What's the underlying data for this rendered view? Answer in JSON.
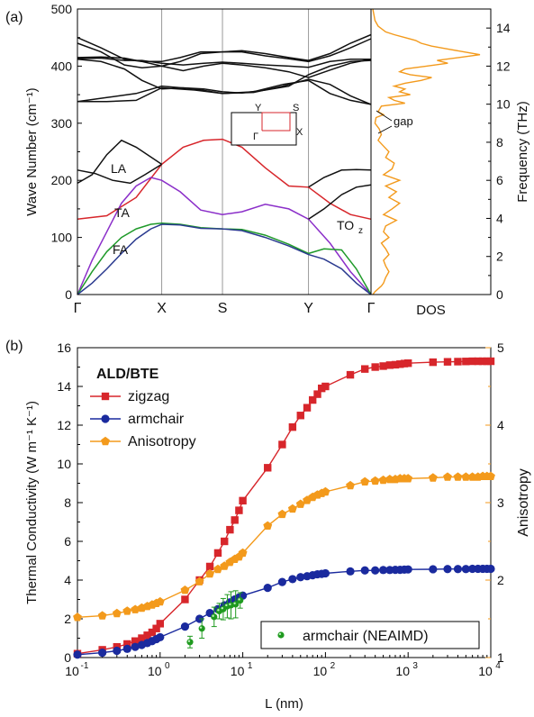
{
  "colors": {
    "red": "#d7262b",
    "blue": "#1a2a9e",
    "orange": "#f39a1c",
    "purple": "#8b2fc9",
    "green": "#1f9a2a",
    "navy": "#2a3a8f",
    "green_dot": "#1f9a1f",
    "grey": "#9a9a9a",
    "black": "#111111"
  },
  "chart_data": [
    {
      "panel_label": "(a)",
      "type": "line",
      "ylabel_left": "Wave Number (cm⁻¹)",
      "ylabel_right": "Frequency (THz)",
      "ylim": [
        0,
        500
      ],
      "yticks": [
        0,
        100,
        200,
        300,
        400,
        500
      ],
      "ylim_right": [
        0,
        15
      ],
      "yticks_right": [
        0,
        2,
        4,
        6,
        8,
        10,
        12,
        14
      ],
      "path_points": [
        "Γ",
        "X",
        "S",
        "Y",
        "Γ"
      ],
      "path_pos": [
        0,
        0.287,
        0.494,
        0.787,
        1
      ],
      "dos_label": "DOS",
      "labels": {
        "LA": "LA",
        "TA": "TA",
        "FA": "FA",
        "TO": "TO",
        "TO_sub": "z",
        "gap": "gap"
      },
      "inset": {
        "Y": "Y",
        "S": "S",
        "X": "X",
        "Gamma": "Γ"
      },
      "branches": [
        {
          "role": "LA",
          "color": "red",
          "x": [
            0,
            0.1,
            0.2,
            0.287,
            0.36,
            0.43,
            0.494,
            0.56,
            0.64,
            0.72,
            0.787,
            0.86,
            0.93,
            1
          ],
          "y": [
            132,
            138,
            170,
            228,
            258,
            270,
            272,
            258,
            222,
            190,
            188,
            160,
            140,
            132
          ]
        },
        {
          "role": "TA",
          "color": "purple",
          "x": [
            0,
            0.05,
            0.1,
            0.15,
            0.2,
            0.25,
            0.287,
            0.35,
            0.42,
            0.494,
            0.56,
            0.64,
            0.72,
            0.787,
            0.86,
            0.93,
            1
          ],
          "y": [
            0,
            60,
            110,
            160,
            190,
            205,
            200,
            180,
            148,
            140,
            145,
            158,
            150,
            132,
            90,
            40,
            0
          ]
        },
        {
          "role": "FA",
          "color": "green",
          "x": [
            0,
            0.05,
            0.1,
            0.15,
            0.2,
            0.25,
            0.287,
            0.35,
            0.42,
            0.494,
            0.56,
            0.64,
            0.72,
            0.787,
            0.84,
            0.9,
            0.95,
            1
          ],
          "y": [
            0,
            40,
            75,
            100,
            115,
            123,
            125,
            123,
            117,
            115,
            114,
            104,
            88,
            72,
            80,
            78,
            45,
            0
          ]
        },
        {
          "role": "ZA",
          "color": "navy",
          "x": [
            0,
            0.05,
            0.1,
            0.15,
            0.2,
            0.25,
            0.287,
            0.35,
            0.42,
            0.494,
            0.56,
            0.64,
            0.72,
            0.787,
            0.84,
            0.9,
            0.95,
            1
          ],
          "y": [
            0,
            20,
            45,
            72,
            97,
            115,
            123,
            122,
            116,
            115,
            112,
            100,
            85,
            70,
            62,
            45,
            20,
            0
          ]
        },
        {
          "role": "o1",
          "color": "black",
          "x": [
            0,
            0.06,
            0.12,
            0.18,
            0.23,
            0.287
          ],
          "y": [
            218,
            212,
            200,
            195,
            210,
            228
          ]
        },
        {
          "role": "o2",
          "color": "black",
          "x": [
            0,
            0.05,
            0.1,
            0.15,
            0.2,
            0.287
          ],
          "y": [
            195,
            210,
            245,
            270,
            258,
            228
          ]
        },
        {
          "role": "o3",
          "color": "black",
          "x": [
            0.787,
            0.84,
            0.9,
            0.95,
            1
          ],
          "y": [
            188,
            205,
            218,
            219,
            218
          ]
        },
        {
          "role": "o4",
          "color": "black",
          "x": [
            0.787,
            0.84,
            0.9,
            0.95,
            1
          ],
          "y": [
            132,
            150,
            175,
            188,
            192
          ]
        },
        {
          "role": "o5",
          "color": "black",
          "x": [
            0,
            0.1,
            0.2,
            0.287,
            0.4,
            0.494,
            0.6,
            0.7,
            0.787,
            0.86,
            0.93,
            1
          ],
          "y": [
            338,
            338,
            340,
            362,
            358,
            352,
            355,
            368,
            375,
            352,
            340,
            333
          ]
        },
        {
          "role": "o6",
          "color": "black",
          "x": [
            0,
            0.1,
            0.2,
            0.287,
            0.4,
            0.494,
            0.6,
            0.7,
            0.787,
            0.86,
            0.93,
            1
          ],
          "y": [
            338,
            345,
            352,
            365,
            360,
            352,
            354,
            365,
            377,
            368,
            348,
            333
          ]
        },
        {
          "role": "o7",
          "color": "black",
          "x": [
            0,
            0.08,
            0.16,
            0.22,
            0.287,
            0.35,
            0.42,
            0.494,
            0.56,
            0.64,
            0.72,
            0.787,
            0.86,
            0.93,
            1
          ],
          "y": [
            450,
            432,
            412,
            408,
            408,
            415,
            425,
            425,
            425,
            418,
            413,
            408,
            418,
            432,
            448
          ]
        },
        {
          "role": "o8",
          "color": "black",
          "x": [
            0,
            0.08,
            0.16,
            0.22,
            0.287,
            0.35,
            0.42,
            0.494,
            0.56,
            0.64,
            0.72,
            0.787,
            0.86,
            0.93,
            1
          ],
          "y": [
            440,
            425,
            402,
            397,
            400,
            408,
            422,
            425,
            427,
            422,
            415,
            410,
            422,
            440,
            455
          ]
        },
        {
          "role": "o9",
          "color": "black",
          "x": [
            0,
            0.08,
            0.16,
            0.22,
            0.287,
            0.36,
            0.43,
            0.494,
            0.56,
            0.64,
            0.72,
            0.787,
            0.86,
            0.93,
            1
          ],
          "y": [
            415,
            416,
            414,
            408,
            400,
            392,
            400,
            405,
            402,
            397,
            390,
            380,
            393,
            405,
            412
          ]
        },
        {
          "role": "o10",
          "color": "black",
          "x": [
            0,
            0.08,
            0.16,
            0.22,
            0.287,
            0.36,
            0.43,
            0.494,
            0.56,
            0.64,
            0.72,
            0.787,
            0.86,
            0.93,
            1
          ],
          "y": [
            413,
            414,
            410,
            410,
            405,
            402,
            405,
            407,
            405,
            402,
            400,
            398,
            408,
            412,
            412
          ]
        },
        {
          "role": "o11",
          "color": "black",
          "x": [
            0,
            0.08,
            0.16,
            0.22,
            0.287,
            0.36,
            0.43,
            0.494,
            0.56,
            0.64,
            0.72,
            0.787,
            0.86,
            0.93,
            1
          ],
          "y": [
            412,
            408,
            395,
            375,
            360,
            362,
            360,
            355,
            353,
            358,
            365,
            385,
            400,
            408,
            410
          ]
        }
      ],
      "dos": {
        "color": "orange",
        "y": [
          0,
          5,
          10,
          15,
          20,
          30,
          40,
          50,
          60,
          70,
          80,
          90,
          100,
          110,
          120,
          130,
          140,
          150,
          160,
          170,
          180,
          190,
          200,
          210,
          220,
          230,
          240,
          250,
          260,
          270,
          280,
          290,
          300,
          310,
          315,
          320,
          330,
          335,
          340,
          345,
          350,
          355,
          360,
          365,
          370,
          375,
          380,
          385,
          390,
          395,
          400,
          405,
          410,
          415,
          420,
          425,
          430,
          435,
          440,
          445,
          450,
          455,
          460,
          470,
          480,
          490,
          500
        ],
        "v": [
          0,
          0.02,
          0.05,
          0.08,
          0.1,
          0.12,
          0.15,
          0.12,
          0.1,
          0.15,
          0.12,
          0.08,
          0.15,
          0.1,
          0.12,
          0.22,
          0.1,
          0.18,
          0.25,
          0.15,
          0.22,
          0.12,
          0.25,
          0.1,
          0.18,
          0.2,
          0.12,
          0.15,
          0.1,
          0.05,
          0.08,
          0.06,
          0.02,
          0.03,
          0.1,
          0.05,
          0.08,
          0.3,
          0.2,
          0.15,
          0.35,
          0.25,
          0.3,
          0.2,
          0.3,
          0.45,
          0.55,
          0.35,
          0.25,
          0.3,
          0.5,
          0.7,
          0.6,
          0.8,
          1.0,
          0.85,
          0.7,
          0.55,
          0.45,
          0.4,
          0.3,
          0.2,
          0.12,
          0.05,
          0.02,
          0.01,
          0
        ]
      }
    },
    {
      "panel_label": "(b)",
      "type": "line",
      "xlabel": "L (nm)",
      "ylabel_left": "Thermal Conductivity (W m⁻¹ K⁻¹)",
      "ylabel_right": "Anisotropy",
      "xscale": "log",
      "xlim": [
        0.1,
        10000
      ],
      "xticks": [
        {
          "v": 0.1,
          "b": "10",
          "e": "-1"
        },
        {
          "v": 1,
          "b": "10",
          "e": "0"
        },
        {
          "v": 10,
          "b": "10",
          "e": "1"
        },
        {
          "v": 100,
          "b": "10",
          "e": "2"
        },
        {
          "v": 1000,
          "b": "10",
          "e": "3"
        },
        {
          "v": 10000,
          "b": "10",
          "e": "4"
        }
      ],
      "ylim": [
        0,
        16
      ],
      "yticks": [
        0,
        2,
        4,
        6,
        8,
        10,
        12,
        14,
        16
      ],
      "ylim_right": [
        1,
        5
      ],
      "yticks_right": [
        1,
        2,
        3,
        4,
        5
      ],
      "legend_title": "ALD/BTE",
      "inset_legend": "armchair (NEAIMD)",
      "series": [
        {
          "name": "zigzag",
          "color": "red",
          "marker": "square",
          "axis": "left",
          "x": [
            0.1,
            0.2,
            0.3,
            0.4,
            0.5,
            0.6,
            0.7,
            0.8,
            0.9,
            1,
            2,
            3,
            4,
            5,
            6,
            7,
            8,
            9,
            10,
            20,
            30,
            40,
            50,
            60,
            70,
            80,
            90,
            100,
            200,
            300,
            400,
            500,
            600,
            700,
            800,
            900,
            1000,
            2000,
            3000,
            4000,
            5000,
            6000,
            7000,
            8000,
            9000,
            10000
          ],
          "y": [
            0.2,
            0.4,
            0.55,
            0.7,
            0.85,
            1.0,
            1.15,
            1.3,
            1.5,
            1.75,
            3.0,
            4.0,
            4.7,
            5.4,
            6.0,
            6.6,
            7.1,
            7.6,
            8.1,
            9.8,
            11.0,
            11.9,
            12.5,
            12.9,
            13.3,
            13.6,
            13.9,
            14.0,
            14.6,
            14.9,
            15.0,
            15.05,
            15.1,
            15.12,
            15.15,
            15.18,
            15.2,
            15.25,
            15.27,
            15.28,
            15.29,
            15.3,
            15.3,
            15.3,
            15.3,
            15.3
          ]
        },
        {
          "name": "armchair",
          "color": "blue",
          "marker": "circle",
          "axis": "left",
          "x": [
            0.1,
            0.2,
            0.3,
            0.4,
            0.5,
            0.6,
            0.7,
            0.8,
            0.9,
            1,
            2,
            3,
            4,
            5,
            6,
            7,
            8,
            9,
            10,
            20,
            30,
            40,
            50,
            60,
            70,
            80,
            90,
            100,
            200,
            300,
            400,
            500,
            600,
            700,
            800,
            900,
            1000,
            2000,
            3000,
            4000,
            5000,
            6000,
            7000,
            8000,
            9000,
            10000
          ],
          "y": [
            0.15,
            0.25,
            0.35,
            0.45,
            0.55,
            0.65,
            0.75,
            0.85,
            0.95,
            1.05,
            1.6,
            2.0,
            2.3,
            2.5,
            2.7,
            2.85,
            3.0,
            3.1,
            3.2,
            3.6,
            3.9,
            4.05,
            4.15,
            4.2,
            4.25,
            4.3,
            4.32,
            4.35,
            4.45,
            4.5,
            4.5,
            4.52,
            4.52,
            4.53,
            4.53,
            4.54,
            4.55,
            4.56,
            4.57,
            4.57,
            4.57,
            4.58,
            4.58,
            4.58,
            4.58,
            4.58
          ]
        },
        {
          "name": "Anisotropy",
          "color": "orange",
          "marker": "pentagon",
          "axis": "right",
          "x": [
            0.1,
            0.2,
            0.3,
            0.4,
            0.5,
            0.6,
            0.7,
            0.8,
            0.9,
            1,
            2,
            3,
            4,
            5,
            6,
            7,
            8,
            9,
            10,
            20,
            30,
            40,
            50,
            60,
            70,
            80,
            90,
            100,
            200,
            300,
            400,
            500,
            600,
            700,
            800,
            900,
            1000,
            2000,
            3000,
            4000,
            5000,
            6000,
            7000,
            8000,
            9000,
            10000
          ],
          "y": [
            1.52,
            1.54,
            1.57,
            1.6,
            1.62,
            1.64,
            1.66,
            1.68,
            1.7,
            1.72,
            1.87,
            1.98,
            2.08,
            2.14,
            2.18,
            2.23,
            2.27,
            2.3,
            2.35,
            2.7,
            2.85,
            2.92,
            2.98,
            3.03,
            3.07,
            3.1,
            3.12,
            3.14,
            3.22,
            3.27,
            3.28,
            3.29,
            3.3,
            3.3,
            3.31,
            3.31,
            3.31,
            3.32,
            3.33,
            3.33,
            3.33,
            3.33,
            3.33,
            3.34,
            3.34,
            3.34
          ]
        },
        {
          "name": "armchair (NEAIMD)",
          "color": "green_dot",
          "marker": "sphere",
          "axis": "left",
          "x": [
            2.3,
            3.2,
            4.5,
            5.2,
            5.8,
            6.5,
            7.2,
            8.2,
            9.3
          ],
          "y": [
            0.8,
            1.5,
            2.1,
            2.4,
            2.5,
            2.65,
            2.7,
            2.75,
            2.95
          ],
          "err": [
            0.3,
            0.5,
            0.5,
            0.4,
            0.55,
            0.6,
            0.7,
            0.7,
            0.4
          ]
        }
      ]
    }
  ]
}
